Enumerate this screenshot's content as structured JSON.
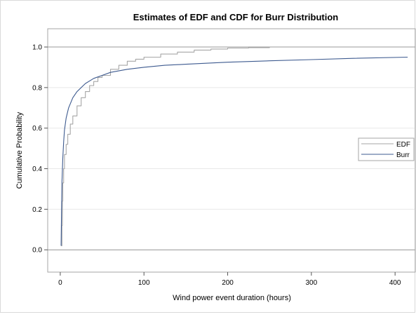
{
  "chart_data": {
    "type": "line",
    "title": "Estimates of EDF and CDF for Burr Distribution",
    "xlabel": "Wind power event duration (hours)",
    "ylabel": "Cumulative Probability",
    "xlim": [
      -15,
      425
    ],
    "ylim": [
      -0.11,
      1.09
    ],
    "x_ticks": [
      0,
      100,
      200,
      300,
      400
    ],
    "y_ticks": [
      0.0,
      0.2,
      0.4,
      0.6,
      0.8,
      1.0
    ],
    "x_tick_labels": [
      "0",
      "100",
      "200",
      "300",
      "400"
    ],
    "y_tick_labels": [
      "0.0",
      "0.2",
      "0.4",
      "0.6",
      "0.8",
      "1.0"
    ],
    "reference_lines_y": [
      0.0,
      1.0
    ],
    "grid": true,
    "legend_position": "right",
    "series": [
      {
        "name": "EDF",
        "color": "#a6a6a6",
        "step": true,
        "points": [
          [
            1,
            0.02
          ],
          [
            2,
            0.12
          ],
          [
            2.5,
            0.24
          ],
          [
            3,
            0.33
          ],
          [
            4,
            0.4
          ],
          [
            5,
            0.47
          ],
          [
            7,
            0.52
          ],
          [
            9,
            0.57
          ],
          [
            12,
            0.62
          ],
          [
            15,
            0.66
          ],
          [
            20,
            0.71
          ],
          [
            25,
            0.75
          ],
          [
            30,
            0.78
          ],
          [
            35,
            0.81
          ],
          [
            40,
            0.83
          ],
          [
            45,
            0.85
          ],
          [
            50,
            0.86
          ],
          [
            60,
            0.89
          ],
          [
            70,
            0.91
          ],
          [
            80,
            0.93
          ],
          [
            90,
            0.94
          ],
          [
            100,
            0.95
          ],
          [
            120,
            0.965
          ],
          [
            140,
            0.975
          ],
          [
            160,
            0.985
          ],
          [
            180,
            0.99
          ],
          [
            200,
            0.995
          ],
          [
            225,
            0.997
          ],
          [
            250,
            1.0
          ]
        ]
      },
      {
        "name": "Burr",
        "color": "#3d5a8f",
        "step": false,
        "points": [
          [
            1,
            0.02
          ],
          [
            1.5,
            0.18
          ],
          [
            2,
            0.33
          ],
          [
            3,
            0.45
          ],
          [
            4,
            0.53
          ],
          [
            5,
            0.59
          ],
          [
            7,
            0.65
          ],
          [
            10,
            0.7
          ],
          [
            15,
            0.75
          ],
          [
            20,
            0.78
          ],
          [
            30,
            0.82
          ],
          [
            40,
            0.845
          ],
          [
            50,
            0.86
          ],
          [
            60,
            0.875
          ],
          [
            80,
            0.89
          ],
          [
            100,
            0.9
          ],
          [
            125,
            0.91
          ],
          [
            150,
            0.915
          ],
          [
            200,
            0.925
          ],
          [
            250,
            0.932
          ],
          [
            300,
            0.938
          ],
          [
            350,
            0.944
          ],
          [
            415,
            0.95
          ]
        ]
      }
    ]
  }
}
